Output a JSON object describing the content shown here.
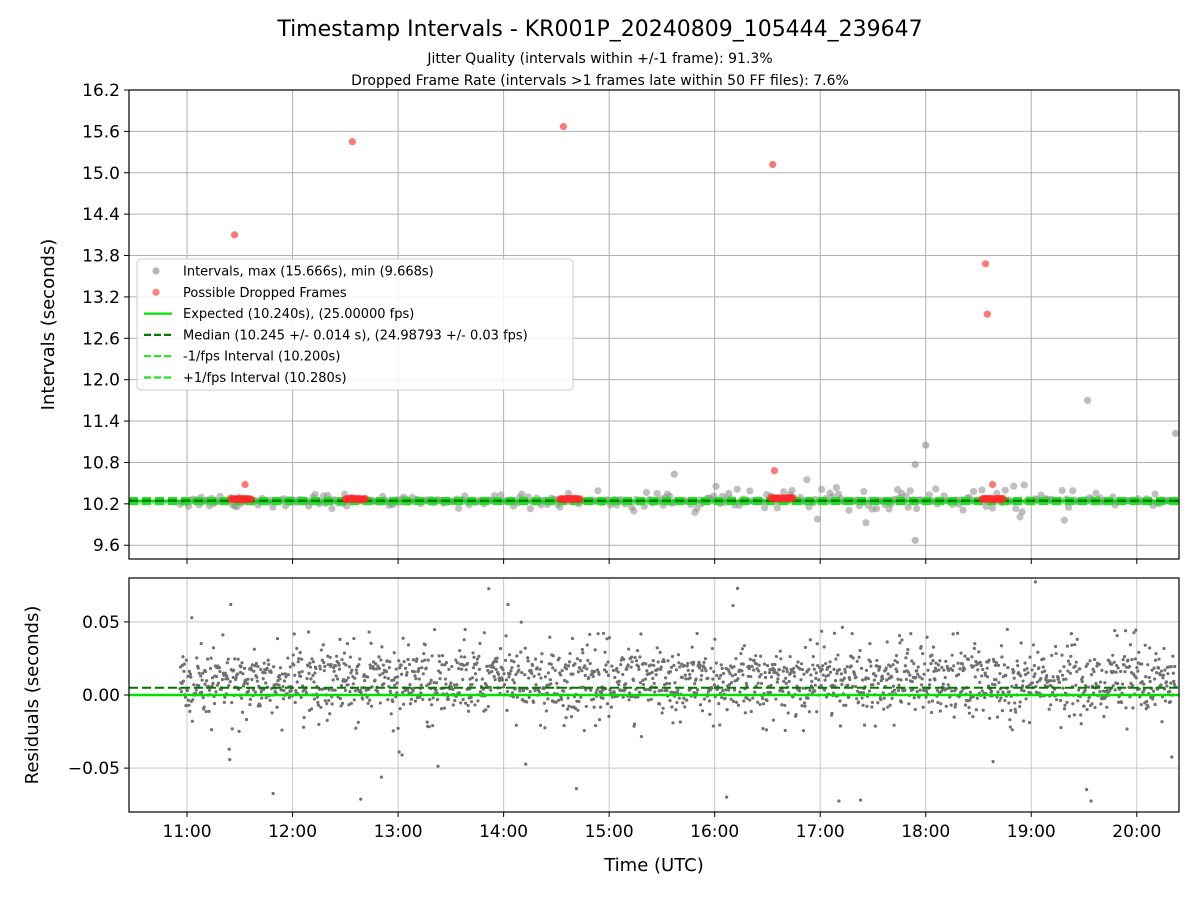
{
  "chart_data": [
    {
      "panel": "intervals",
      "type": "scatter",
      "title": "Timestamp Intervals - KR001P_20240809_105444_239647",
      "subtitle_lines": [
        "Jitter Quality (intervals within +/-1 frame): 91.3%",
        "Dropped Frame Rate (intervals >1 frames late within 50 FF files): 7.6%"
      ],
      "ylabel": "Intervals (seconds)",
      "xlabel": "",
      "ylim": [
        9.4,
        16.2
      ],
      "yticks": [
        "9.6",
        "10.2",
        "10.8",
        "11.4",
        "12.0",
        "12.6",
        "13.2",
        "13.8",
        "14.4",
        "15.0",
        "15.6",
        "16.2"
      ],
      "grid": true,
      "legend_position": "center-left",
      "legend": [
        {
          "label": "Intervals, max (15.666s), min (9.668s)",
          "style": "marker",
          "color": "#9e9e9e"
        },
        {
          "label": "Possible Dropped Frames",
          "style": "marker",
          "color": "#ff5a5a"
        },
        {
          "label": "Expected (10.240s), (25.00000 fps)",
          "style": "solid",
          "color": "#00e000"
        },
        {
          "label": "Median (10.245 +/- 0.014 s), (24.98793 +/- 0.03 fps)",
          "style": "dashed",
          "color": "#007800"
        },
        {
          "label": "-1/fps Interval (10.200s)",
          "style": "dashed",
          "color": "#22e022"
        },
        {
          "label": "+1/fps Interval (10.280s)",
          "style": "dashed",
          "color": "#22e022"
        }
      ],
      "hlines": {
        "expected": 10.24,
        "median": 10.245,
        "minus": 10.2,
        "plus": 10.28
      },
      "dropped_frames": [
        {
          "x": "11:27",
          "y": 14.1
        },
        {
          "x": "11:33",
          "y": 10.48
        },
        {
          "x": "12:34",
          "y": 15.45
        },
        {
          "x": "14:34",
          "y": 15.67
        },
        {
          "x": "16:33",
          "y": 15.12
        },
        {
          "x": "16:34",
          "y": 10.68
        },
        {
          "x": "18:34",
          "y": 13.68
        },
        {
          "x": "18:35",
          "y": 12.95
        },
        {
          "x": "18:38",
          "y": 10.48
        }
      ],
      "dropped_clusters": [
        {
          "start": "11:25",
          "end": "11:37",
          "y": 10.27
        },
        {
          "start": "12:30",
          "end": "12:42",
          "y": 10.27
        },
        {
          "start": "14:32",
          "end": "14:44",
          "y": 10.27
        },
        {
          "start": "16:32",
          "end": "16:45",
          "y": 10.28
        },
        {
          "start": "18:32",
          "end": "18:44",
          "y": 10.27
        }
      ],
      "outlier_intervals": [
        {
          "x": "18:00",
          "y": 11.05
        },
        {
          "x": "19:32",
          "y": 11.7
        },
        {
          "x": "20:22",
          "y": 11.22
        },
        {
          "x": "17:54",
          "y": 10.77
        },
        {
          "x": "17:54",
          "y": 9.67
        },
        {
          "x": "16:08",
          "y": 10.35
        },
        {
          "x": "15:37",
          "y": 10.63
        }
      ]
    },
    {
      "panel": "residuals",
      "type": "scatter",
      "ylabel": "Residuals (seconds)",
      "xlabel": "Time (UTC)",
      "ylim": [
        -0.08,
        0.08
      ],
      "yticks": [
        {
          "value": 0.05,
          "label": "0.05"
        },
        {
          "value": 0.0,
          "label": "0.00"
        },
        {
          "value": -0.05,
          "label": "−0.05"
        }
      ],
      "hlines": {
        "zero": 0.0,
        "median": 0.005
      },
      "xlim": [
        "10:27",
        "20:24"
      ],
      "xticks": [
        "11:00",
        "12:00",
        "13:00",
        "14:00",
        "15:00",
        "16:00",
        "17:00",
        "18:00",
        "19:00",
        "20:00"
      ],
      "series_color": "#707070",
      "grid": true
    }
  ]
}
